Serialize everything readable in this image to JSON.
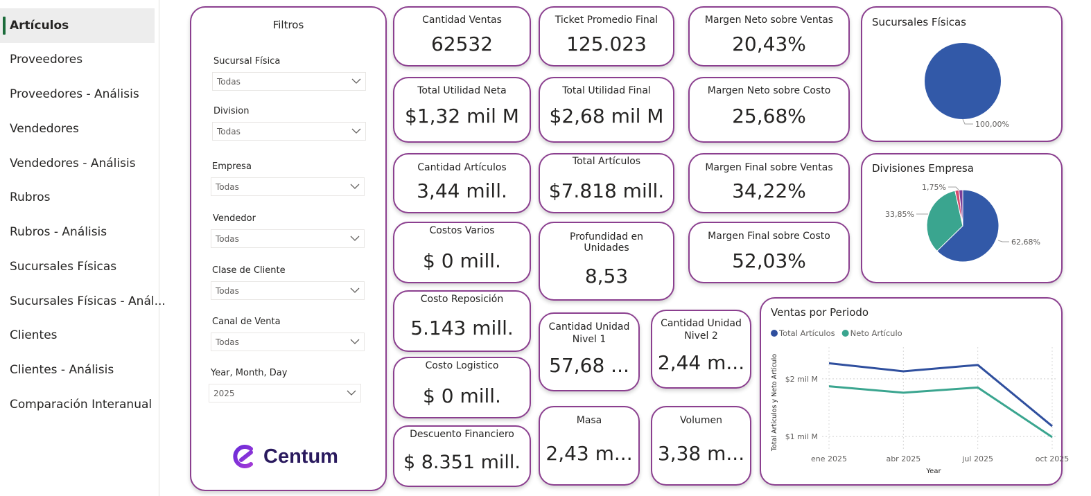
{
  "sidebar": {
    "items": [
      {
        "label": "Artículos",
        "active": true
      },
      {
        "label": "Proveedores"
      },
      {
        "label": "Proveedores - Análisis"
      },
      {
        "label": "Vendedores"
      },
      {
        "label": "Vendedores - Análisis"
      },
      {
        "label": "Rubros"
      },
      {
        "label": "Rubros - Análisis"
      },
      {
        "label": "Sucursales Físicas"
      },
      {
        "label": "Sucursales Físicas - Anál..."
      },
      {
        "label": "Clientes"
      },
      {
        "label": "Clientes - Análisis"
      },
      {
        "label": "Comparación Interanual"
      }
    ]
  },
  "filters": {
    "title": "Filtros",
    "items": [
      {
        "label": "Sucursal Física",
        "value": "Todas"
      },
      {
        "label": "Division",
        "value": "Todas"
      },
      {
        "label": "Empresa",
        "value": "Todas"
      },
      {
        "label": "Vendedor",
        "value": "Todas"
      },
      {
        "label": "Clase de Cliente",
        "value": "Todas"
      },
      {
        "label": "Canal de Venta",
        "value": "Todas"
      },
      {
        "label": "Year, Month, Day",
        "value": "2025"
      }
    ],
    "logo_text": "Centum"
  },
  "kpis": {
    "cantidad_ventas": {
      "title": "Cantidad Ventas",
      "value": "62532"
    },
    "ticket_promedio": {
      "title": "Ticket Promedio Final",
      "value": "125.023"
    },
    "margen_neto_ventas": {
      "title": "Margen Neto sobre Ventas",
      "value": "20,43%"
    },
    "total_utilidad_neta": {
      "title": "Total Utilidad Neta",
      "value": "$1,32 mil M"
    },
    "total_utilidad_final": {
      "title": "Total Utilidad Final",
      "value": "$2,68 mil M"
    },
    "margen_neto_costo": {
      "title": "Margen Neto sobre Costo",
      "value": "25,68%"
    },
    "cantidad_articulos": {
      "title": "Cantidad Artículos",
      "value": "3,44 mill."
    },
    "total_articulos": {
      "title": "Total Artículos",
      "value": "$7.818 mill."
    },
    "margen_final_ventas": {
      "title": "Margen Final sobre Ventas",
      "value": "34,22%"
    },
    "costos_varios": {
      "title": "Costos Varios",
      "value": "$ 0 mill."
    },
    "profundidad_unidades": {
      "title1": "Profundidad en",
      "title2": "Unidades",
      "value": "8,53"
    },
    "margen_final_costo": {
      "title": "Margen Final sobre Costo",
      "value": "52,03%"
    },
    "costo_reposicion": {
      "title": "Costo Reposición",
      "value": "5.143 mill."
    },
    "cantidad_unidad_n1": {
      "title1": "Cantidad Unidad",
      "title2": "Nivel 1",
      "value": "57,68 ..."
    },
    "cantidad_unidad_n2": {
      "title1": "Cantidad Unidad",
      "title2": "Nivel 2",
      "value": "2,44 m..."
    },
    "costo_logistico": {
      "title": "Costo Logistico",
      "value": "$ 0 mill."
    },
    "masa": {
      "title": "Masa",
      "value": "2,43 m..."
    },
    "volumen": {
      "title": "Volumen",
      "value": "3,38 m..."
    },
    "descuento_financiero": {
      "title": "Descuento Financiero",
      "value": "$ 8.351 mill."
    }
  },
  "pie_sucursales": {
    "title": "Sucursales Físicas",
    "slices": [
      {
        "value": 100.0,
        "label": "100,00%",
        "color": "#3259a8"
      }
    ]
  },
  "pie_divisiones": {
    "title": "Divisiones Empresa",
    "slices": [
      {
        "value": 62.68,
        "label": "62,68%",
        "color": "#3259a8"
      },
      {
        "value": 33.85,
        "label": "33,85%",
        "color": "#3aa58f"
      },
      {
        "value": 1.75,
        "label": "1,75%",
        "color": "#d64c6f"
      },
      {
        "value": 1.72,
        "label": "",
        "color": "#7b3e98"
      }
    ]
  },
  "chart_data": {
    "type": "line",
    "title": "Ventas por Periodo",
    "x": [
      "ene 2025",
      "abr 2025",
      "jul 2025",
      "oct 2025"
    ],
    "xlabel": "Year",
    "ylabel": "Total Artículos y Neto Artículo",
    "ylim": [
      0.75,
      2.55
    ],
    "yticks": [
      {
        "value": 1,
        "label": "$1 mil M"
      },
      {
        "value": 2,
        "label": "$2 mil M"
      }
    ],
    "legend": "top-left",
    "series": [
      {
        "name": "Total Artículos",
        "color": "#2f4f9e",
        "values": [
          2.27,
          2.13,
          2.24,
          1.18
        ]
      },
      {
        "name": "Neto Artículo",
        "color": "#3aa58f",
        "values": [
          1.87,
          1.76,
          1.85,
          0.99
        ]
      }
    ]
  }
}
